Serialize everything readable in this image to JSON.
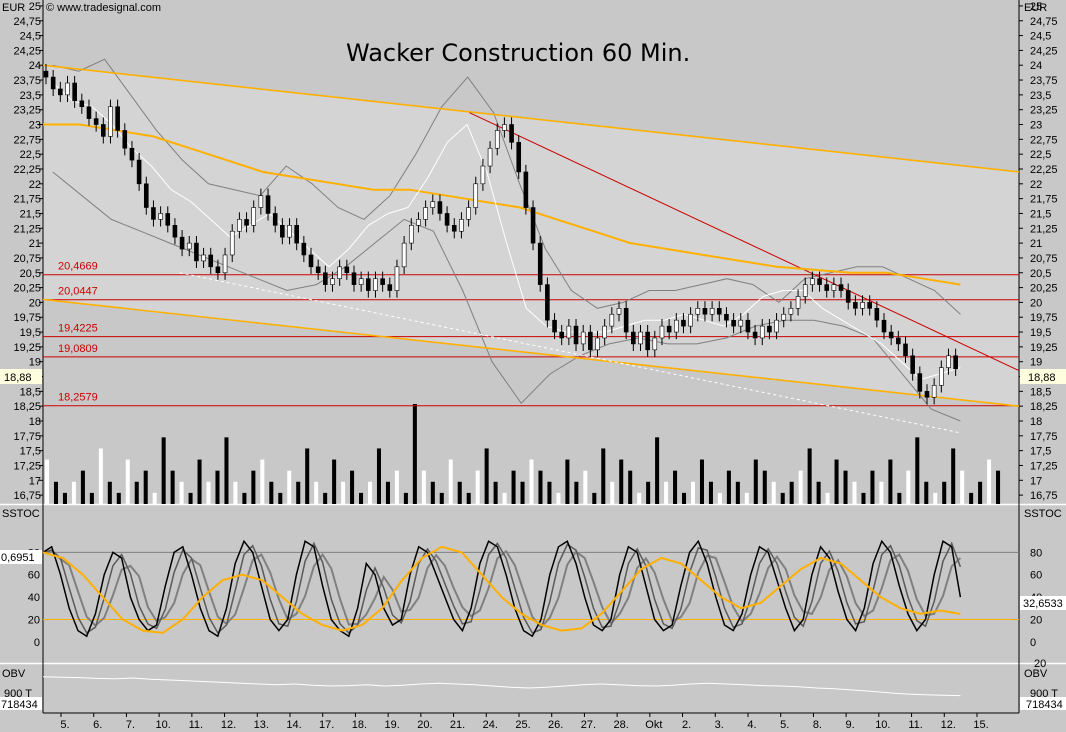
{
  "chart_data": [
    {
      "type": "candlestick",
      "title": "Wacker Construction 60 Min.",
      "copyright": "© www.tradesignal.com",
      "currency_label": "EUR",
      "ylim": [
        16.6,
        25.1
      ],
      "y_ticks": [
        "25",
        "24,75",
        "24,5",
        "24,25",
        "24",
        "23,75",
        "23,5",
        "23,25",
        "23",
        "22,75",
        "22,5",
        "22,25",
        "22",
        "21,75",
        "21,5",
        "21,25",
        "21",
        "20,75",
        "20,5",
        "20,25",
        "20",
        "19,75",
        "19,5",
        "19,25",
        "19",
        "18,75",
        "18,5",
        "18,25",
        "18",
        "17,75",
        "17,5",
        "17,25",
        "17",
        "16,75"
      ],
      "y_tick_values": [
        25,
        24.75,
        24.5,
        24.25,
        24,
        23.75,
        23.5,
        23.25,
        23,
        22.75,
        22.5,
        22.25,
        22,
        21.75,
        21.5,
        21.25,
        21,
        20.75,
        20.5,
        20.25,
        20,
        19.75,
        19.5,
        19.25,
        19,
        18.75,
        18.5,
        18.25,
        18,
        17.75,
        17.5,
        17.25,
        17,
        16.75
      ],
      "last_price_label": "18,88",
      "last_price": 18.88,
      "price_close": [
        23.8,
        23.6,
        23.5,
        23.7,
        23.4,
        23.3,
        23.1,
        23.0,
        22.8,
        23.3,
        22.9,
        22.6,
        22.4,
        22.0,
        21.6,
        21.4,
        21.5,
        21.3,
        21.1,
        20.9,
        21.0,
        20.7,
        20.8,
        20.6,
        20.5,
        20.8,
        21.2,
        21.4,
        21.3,
        21.6,
        21.8,
        21.5,
        21.3,
        21.1,
        21.3,
        21.0,
        20.8,
        20.6,
        20.5,
        20.3,
        20.4,
        20.6,
        20.5,
        20.3,
        20.4,
        20.2,
        20.4,
        20.3,
        20.2,
        20.6,
        21.0,
        21.3,
        21.4,
        21.6,
        21.7,
        21.5,
        21.3,
        21.2,
        21.4,
        21.6,
        22.0,
        22.3,
        22.6,
        22.9,
        23.0,
        22.7,
        22.2,
        21.6,
        21.0,
        20.3,
        19.7,
        19.5,
        19.4,
        19.6,
        19.3,
        19.5,
        19.2,
        19.4,
        19.6,
        19.8,
        19.9,
        19.5,
        19.3,
        19.5,
        19.2,
        19.4,
        19.6,
        19.5,
        19.7,
        19.6,
        19.8,
        19.9,
        19.8,
        19.9,
        19.8,
        19.7,
        19.6,
        19.7,
        19.5,
        19.4,
        19.6,
        19.5,
        19.7,
        19.8,
        19.9,
        20.1,
        20.3,
        20.4,
        20.3,
        20.2,
        20.3,
        20.2,
        20.0,
        19.9,
        20.0,
        19.9,
        19.7,
        19.5,
        19.4,
        19.3,
        19.1,
        18.8,
        18.5,
        18.4,
        18.6,
        18.9,
        19.1,
        18.88
      ],
      "bollinger_upper": [
        24.0,
        23.9,
        24.1,
        23.5,
        22.9,
        22.4,
        22.0,
        21.9,
        21.8,
        22.3,
        22.0,
        21.6,
        21.4,
        21.8,
        22.5,
        23.3,
        23.8,
        23.2,
        22.0,
        20.9,
        20.2,
        19.9,
        20.0,
        20.2,
        20.2,
        20.3,
        20.4,
        20.3,
        20.0,
        20.4,
        20.5,
        20.6,
        20.6,
        20.4,
        20.2,
        19.8
      ],
      "bollinger_lower": [
        22.2,
        21.8,
        21.4,
        21.2,
        21.0,
        20.8,
        20.6,
        20.4,
        20.2,
        20.3,
        20.6,
        21.0,
        21.4,
        21.2,
        20.2,
        19.0,
        18.3,
        18.8,
        19.1,
        19.3,
        19.4,
        19.3,
        19.3,
        19.4,
        19.6,
        19.7,
        19.7,
        19.6,
        19.4,
        18.8,
        18.2,
        18.0
      ],
      "ma_fast_white": [
        23.7,
        23.4,
        23.3,
        23.0,
        22.6,
        22.3,
        21.9,
        21.7,
        21.4,
        21.1,
        21.3,
        21.5,
        21.2,
        20.9,
        20.6,
        20.9,
        21.3,
        21.5,
        21.6,
        22.1,
        22.7,
        23.0,
        22.2,
        21.0,
        19.9,
        19.6,
        19.5,
        19.5,
        19.5,
        19.6,
        19.7,
        19.7,
        19.8,
        19.7,
        19.6,
        19.8,
        20.1,
        20.2,
        20.2,
        19.9,
        19.7,
        19.5,
        19.3,
        19.0,
        18.7,
        18.8,
        18.9
      ],
      "ma_slow_gold": [
        23.0,
        23.0,
        22.9,
        22.8,
        22.6,
        22.4,
        22.2,
        22.1,
        22.0,
        21.9,
        21.9,
        21.8,
        21.7,
        21.6,
        21.4,
        21.2,
        21.0,
        20.9,
        20.8,
        20.7,
        20.6,
        20.55,
        20.5,
        20.5,
        20.4,
        20.3
      ],
      "volume": [
        4,
        2,
        1,
        2,
        3,
        1,
        5,
        2,
        1,
        4,
        2,
        3,
        1,
        6,
        3,
        2,
        1,
        4,
        2,
        3,
        6,
        2,
        1,
        3,
        4,
        2,
        1,
        3,
        2,
        5,
        2,
        1,
        4,
        2,
        3,
        1,
        2,
        5,
        2,
        3,
        1,
        9,
        3,
        2,
        1,
        4,
        2,
        1,
        3,
        5,
        2,
        1,
        3,
        2,
        4,
        3,
        2,
        1,
        4,
        2,
        3,
        1,
        5,
        2,
        4,
        3,
        1,
        2,
        6,
        2,
        3,
        1,
        2,
        4,
        2,
        1,
        3,
        2,
        1,
        4,
        3,
        2,
        1,
        2,
        3,
        5,
        2,
        1,
        4,
        3,
        2,
        1,
        3,
        2,
        4,
        1,
        3,
        6,
        2,
        1,
        2,
        5,
        3,
        1,
        2,
        4,
        3
      ],
      "levels": [
        {
          "label": "20,4669",
          "value": 20.4669
        },
        {
          "label": "20,0447",
          "value": 20.0447
        },
        {
          "label": "19,4225",
          "value": 19.4225
        },
        {
          "label": "19,0809",
          "value": 19.0809
        },
        {
          "label": "18,2579",
          "value": 18.2579
        }
      ],
      "trend_lines": [
        {
          "color": "#ffb000",
          "from": [
            0,
            24.0
          ],
          "to": [
            1,
            22.2
          ]
        },
        {
          "color": "#ffb000",
          "from": [
            0,
            20.05
          ],
          "to": [
            1,
            18.25
          ]
        },
        {
          "color": "#cc0000",
          "from": [
            0.437,
            23.2
          ],
          "to": [
            1,
            18.85
          ]
        },
        {
          "color": "#ffffff",
          "from": [
            0.14,
            20.5
          ],
          "to": [
            0.94,
            17.8
          ]
        }
      ],
      "x_labels": [
        "5.",
        "6.",
        "7.",
        "10.",
        "11.",
        "12.",
        "13.",
        "14.",
        "17.",
        "18.",
        "19.",
        "20.",
        "21.",
        "24.",
        "25.",
        "26.",
        "27.",
        "28.",
        "Okt",
        "2.",
        "3.",
        "4.",
        "5.",
        "8.",
        "9.",
        "10.",
        "11.",
        "12.",
        "15."
      ],
      "grid": false
    },
    {
      "type": "line",
      "name": "SSTOC",
      "label": "SSTOC",
      "ylim": [
        -10,
        100
      ],
      "y_ticks": [
        "80",
        "60",
        "40",
        "20",
        "0"
      ],
      "y_tick_values": [
        80,
        60,
        40,
        20,
        0
      ],
      "right_extra_tick": "20",
      "left_value_label": "0,6951",
      "right_value_label": "32,6533",
      "reference_lines": [
        80,
        20
      ],
      "stoch_fast": [
        80,
        85,
        60,
        30,
        10,
        5,
        25,
        60,
        80,
        75,
        40,
        20,
        10,
        15,
        50,
        80,
        85,
        60,
        30,
        10,
        5,
        30,
        70,
        90,
        80,
        50,
        20,
        10,
        20,
        60,
        90,
        85,
        50,
        20,
        10,
        5,
        30,
        70,
        60,
        30,
        15,
        20,
        60,
        85,
        80,
        60,
        40,
        20,
        10,
        30,
        70,
        90,
        85,
        60,
        30,
        10,
        5,
        20,
        60,
        85,
        90,
        70,
        40,
        15,
        10,
        20,
        60,
        85,
        80,
        50,
        20,
        10,
        15,
        50,
        80,
        90,
        70,
        40,
        15,
        10,
        25,
        60,
        85,
        80,
        55,
        30,
        10,
        20,
        60,
        85,
        75,
        45,
        20,
        10,
        30,
        70,
        90,
        80,
        50,
        25,
        10,
        20,
        60,
        90,
        85,
        40
      ],
      "stoch_slow_gold": [
        80,
        75,
        60,
        40,
        20,
        10,
        8,
        20,
        40,
        55,
        60,
        55,
        40,
        25,
        15,
        10,
        15,
        30,
        55,
        75,
        85,
        80,
        60,
        40,
        25,
        15,
        10,
        12,
        25,
        45,
        65,
        75,
        70,
        55,
        40,
        30,
        35,
        50,
        65,
        75,
        70,
        55,
        40,
        30,
        25,
        28,
        25
      ]
    },
    {
      "type": "line",
      "name": "OBV",
      "label": "OBV",
      "ylim": [
        0,
        1
      ],
      "right_tick": "900 T",
      "left_value_label": "718434",
      "right_value_label": "718434",
      "values": [
        0.78,
        0.77,
        0.76,
        0.74,
        0.73,
        0.75,
        0.72,
        0.7,
        0.68,
        0.66,
        0.64,
        0.62,
        0.6,
        0.58,
        0.6,
        0.57,
        0.55,
        0.56,
        0.58,
        0.55,
        0.57,
        0.6,
        0.62,
        0.6,
        0.58,
        0.55,
        0.52,
        0.5,
        0.52,
        0.55,
        0.58,
        0.6,
        0.58,
        0.56,
        0.55,
        0.57,
        0.6,
        0.62,
        0.6,
        0.58,
        0.56,
        0.55,
        0.53,
        0.5,
        0.48,
        0.45,
        0.42,
        0.38,
        0.35,
        0.33,
        0.32,
        0.31
      ]
    }
  ]
}
